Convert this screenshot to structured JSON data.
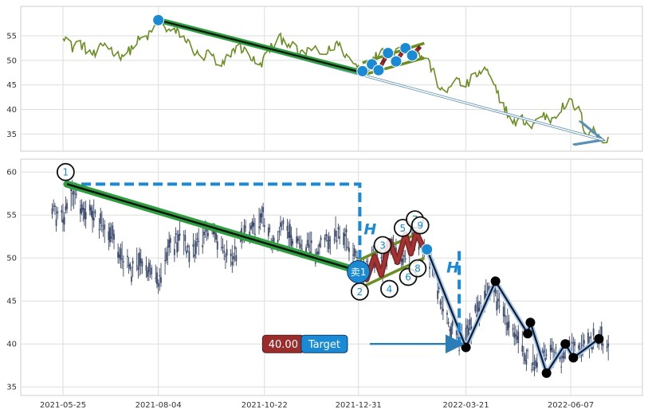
{
  "chart_data": [
    {
      "type": "line",
      "panel": "top",
      "ylim": [
        31.5,
        61
      ],
      "yticks": [
        "55",
        "50",
        "45",
        "40",
        "35"
      ],
      "ytick_values": [
        55,
        50,
        45,
        40,
        35
      ],
      "grid": true,
      "series_color": "#6b8e23",
      "x_start": "2021-05-25",
      "anchor_points": [
        [
          "2021-05-25",
          55.5
        ],
        [
          "2021-06-01",
          52.5
        ],
        [
          "2021-06-05",
          54.0
        ],
        [
          "2021-06-12",
          52.0
        ],
        [
          "2021-06-18",
          51.0
        ],
        [
          "2021-06-25",
          53.5
        ],
        [
          "2021-07-05",
          51.0
        ],
        [
          "2021-07-12",
          51.5
        ],
        [
          "2021-07-20",
          54.0
        ],
        [
          "2021-07-28",
          55.0
        ],
        [
          "2021-08-04",
          58.0
        ],
        [
          "2021-08-12",
          56.0
        ],
        [
          "2021-08-20",
          55.5
        ],
        [
          "2021-08-28",
          53.0
        ],
        [
          "2021-09-05",
          50.0
        ],
        [
          "2021-09-12",
          52.0
        ],
        [
          "2021-09-18",
          47.5
        ],
        [
          "2021-09-25",
          51.0
        ],
        [
          "2021-10-02",
          53.0
        ],
        [
          "2021-10-10",
          51.5
        ],
        [
          "2021-10-18",
          48.5
        ],
        [
          "2021-10-25",
          52.0
        ],
        [
          "2021-11-02",
          54.5
        ],
        [
          "2021-11-10",
          53.5
        ],
        [
          "2021-11-18",
          51.0
        ],
        [
          "2021-11-25",
          52.5
        ],
        [
          "2021-12-05",
          51.0
        ],
        [
          "2021-12-15",
          53.5
        ],
        [
          "2021-12-25",
          50.0
        ],
        [
          "2022-01-03",
          48.0
        ],
        [
          "2022-01-10",
          49.5
        ],
        [
          "2022-01-17",
          52.5
        ],
        [
          "2022-01-24",
          51.0
        ],
        [
          "2022-01-31",
          53.0
        ],
        [
          "2022-02-07",
          52.0
        ],
        [
          "2022-02-14",
          51.0
        ],
        [
          "2022-02-20",
          50.5
        ],
        [
          "2022-02-27",
          46.0
        ],
        [
          "2022-03-05",
          42.5
        ],
        [
          "2022-03-12",
          46.5
        ],
        [
          "2022-03-20",
          44.5
        ],
        [
          "2022-03-28",
          47.0
        ],
        [
          "2022-04-05",
          48.0
        ],
        [
          "2022-04-12",
          44.0
        ],
        [
          "2022-04-18",
          41.0
        ],
        [
          "2022-04-25",
          37.0
        ],
        [
          "2022-05-02",
          38.0
        ],
        [
          "2022-05-09",
          36.5
        ],
        [
          "2022-05-16",
          39.0
        ],
        [
          "2022-05-23",
          38.0
        ],
        [
          "2022-05-30",
          40.0
        ],
        [
          "2022-06-07",
          41.5
        ],
        [
          "2022-06-14",
          39.5
        ],
        [
          "2022-06-18",
          35.0
        ],
        [
          "2022-06-24",
          36.0
        ],
        [
          "2022-06-28",
          34.0
        ],
        [
          "2022-07-01",
          33.5
        ],
        [
          "2022-07-05",
          34.5
        ]
      ],
      "trend_line": {
        "from": [
          "2021-08-04",
          58.2
        ],
        "to": [
          "2022-01-03",
          47.5
        ],
        "color": "#111111",
        "band_color": "#2e9e3e"
      },
      "down_arrow": {
        "from": [
          "2021-08-04",
          58.2
        ],
        "to": [
          "2022-07-01",
          33.8
        ],
        "color": "#5b8fb5"
      },
      "channel": {
        "upper": {
          "from": [
            "2022-01-03",
            49.5
          ],
          "to": [
            "2022-02-18",
            53.5
          ]
        },
        "lower": {
          "from": [
            "2022-01-03",
            47.0
          ],
          "to": [
            "2022-02-18",
            50.5
          ]
        },
        "color": "#6b8e23"
      },
      "zigzag": [
        [
          "2022-01-03",
          47.8
        ],
        [
          "2022-01-10",
          49.2
        ],
        [
          "2022-01-15",
          48.0
        ],
        [
          "2022-01-22",
          51.5
        ],
        [
          "2022-01-28",
          49.8
        ],
        [
          "2022-02-04",
          52.5
        ],
        [
          "2022-02-09",
          51.0
        ],
        [
          "2022-02-15",
          52.8
        ]
      ],
      "zigzag_color": "#a83232",
      "markers": [
        [
          "2021-08-04",
          58.2
        ],
        [
          "2022-01-03",
          47.8
        ],
        [
          "2022-01-10",
          49.2
        ],
        [
          "2022-01-15",
          48.0
        ],
        [
          "2022-01-22",
          51.5
        ],
        [
          "2022-01-28",
          49.8
        ],
        [
          "2022-02-04",
          52.5
        ],
        [
          "2022-02-09",
          51.0
        ]
      ],
      "marker_color": "#1a8ad4"
    },
    {
      "type": "candlestick",
      "panel": "bottom",
      "ylim": [
        34,
        61.5
      ],
      "yticks": [
        "60",
        "55",
        "50",
        "45",
        "40",
        "35"
      ],
      "ytick_values": [
        60,
        55,
        50,
        45,
        40,
        35
      ],
      "xticks": [
        "2021-05-25",
        "2021-08-04",
        "2021-10-22",
        "2021-12-31",
        "2022-03-21",
        "2022-06-07"
      ],
      "grid": true,
      "candle_color": "#3b4a6b",
      "anchor_points": [
        [
          "2021-05-15",
          56.0
        ],
        [
          "2021-05-25",
          54.5
        ],
        [
          "2021-06-01",
          57.5
        ],
        [
          "2021-06-08",
          56.0
        ],
        [
          "2021-06-15",
          55.5
        ],
        [
          "2021-06-22",
          54.0
        ],
        [
          "2021-06-30",
          53.0
        ],
        [
          "2021-07-08",
          50.0
        ],
        [
          "2021-07-15",
          48.5
        ],
        [
          "2021-07-22",
          50.0
        ],
        [
          "2021-07-30",
          48.0
        ],
        [
          "2021-08-05",
          47.0
        ],
        [
          "2021-08-12",
          51.0
        ],
        [
          "2021-08-20",
          52.5
        ],
        [
          "2021-08-28",
          50.5
        ],
        [
          "2021-09-05",
          52.0
        ],
        [
          "2021-09-12",
          53.5
        ],
        [
          "2021-09-20",
          51.0
        ],
        [
          "2021-09-28",
          49.5
        ],
        [
          "2021-10-05",
          52.5
        ],
        [
          "2021-10-12",
          53.5
        ],
        [
          "2021-10-20",
          55.0
        ],
        [
          "2021-10-28",
          52.0
        ],
        [
          "2021-11-05",
          53.5
        ],
        [
          "2021-11-12",
          51.5
        ],
        [
          "2021-11-20",
          52.0
        ],
        [
          "2021-11-28",
          50.5
        ],
        [
          "2021-12-08",
          52.0
        ],
        [
          "2021-12-18",
          53.0
        ],
        [
          "2021-12-26",
          51.0
        ],
        [
          "2022-01-03",
          48.5
        ],
        [
          "2022-01-10",
          50.5
        ],
        [
          "2022-01-18",
          49.5
        ],
        [
          "2022-01-25",
          51.5
        ],
        [
          "2022-02-02",
          50.0
        ],
        [
          "2022-02-10",
          52.0
        ],
        [
          "2022-02-18",
          51.5
        ],
        [
          "2022-02-25",
          49.0
        ],
        [
          "2022-03-02",
          45.0
        ],
        [
          "2022-03-10",
          41.5
        ],
        [
          "2022-03-16",
          40.5
        ],
        [
          "2022-03-21",
          41.0
        ],
        [
          "2022-03-30",
          44.0
        ],
        [
          "2022-04-08",
          46.5
        ],
        [
          "2022-04-15",
          45.0
        ],
        [
          "2022-04-22",
          42.0
        ],
        [
          "2022-04-30",
          40.0
        ],
        [
          "2022-05-08",
          37.5
        ],
        [
          "2022-05-15",
          38.5
        ],
        [
          "2022-05-22",
          39.5
        ],
        [
          "2022-05-30",
          38.0
        ],
        [
          "2022-06-07",
          39.0
        ],
        [
          "2022-06-14",
          39.5
        ],
        [
          "2022-06-21",
          40.0
        ],
        [
          "2022-06-28",
          40.5
        ],
        [
          "2022-07-05",
          40.0
        ]
      ],
      "trend_band": {
        "from": [
          "2021-05-28",
          58.6
        ],
        "to": [
          "2022-01-02",
          48.4
        ],
        "color": "#2e9e3e",
        "line_color": "#111111"
      },
      "h_measure": {
        "top": [
          "2021-05-28",
          58.6
        ],
        "corner_x": "2022-01-01",
        "bottom_y": 48.0,
        "label": "H",
        "color": "#1a8ad4"
      },
      "h_measure_2": {
        "x": "2022-03-16",
        "from_y": 50.8,
        "to_y": 40.2,
        "label": "H"
      },
      "channel": {
        "upper": {
          "from": [
            "2022-01-01",
            49.8
          ],
          "to": [
            "2022-02-18",
            53.2
          ]
        },
        "lower": {
          "from": [
            "2022-01-01",
            46.5
          ],
          "to": [
            "2022-02-18",
            50.0
          ]
        },
        "color": "#6b8e23"
      },
      "zigzag": [
        [
          "2022-01-02",
          48.4
        ],
        [
          "2022-01-06",
          47.5
        ],
        [
          "2022-01-12",
          50.2
        ],
        [
          "2022-01-17",
          48.0
        ],
        [
          "2022-01-23",
          52.0
        ],
        [
          "2022-01-29",
          49.5
        ],
        [
          "2022-02-04",
          52.8
        ],
        [
          "2022-02-08",
          50.5
        ],
        [
          "2022-02-12",
          53.0
        ],
        [
          "2022-02-17",
          51.3
        ]
      ],
      "zigzag_color": "#a83232",
      "zigzag_band_color": "#7a2a2a",
      "labels_numbered": [
        {
          "text": "1",
          "at": [
            "2021-05-27",
            60.0
          ]
        },
        {
          "text": "2",
          "at": [
            "2022-01-01",
            46.1
          ]
        },
        {
          "text": "3",
          "at": [
            "2022-01-18",
            51.5
          ]
        },
        {
          "text": "4",
          "at": [
            "2022-01-23",
            46.4
          ]
        },
        {
          "text": "5",
          "at": [
            "2022-02-02",
            53.5
          ]
        },
        {
          "text": "6",
          "at": [
            "2022-02-06",
            47.8
          ]
        },
        {
          "text": "7",
          "at": [
            "2022-02-11",
            54.5
          ]
        },
        {
          "text": "8",
          "at": [
            "2022-02-13",
            48.8
          ]
        },
        {
          "text": "9",
          "at": [
            "2022-02-15",
            53.8
          ]
        }
      ],
      "sell_marker": {
        "text": "卖1",
        "at": [
          "2021-12-31",
          48.4
        ],
        "color": "#1a8ad4"
      },
      "small_marker": {
        "at": [
          "2022-02-20",
          51.0
        ],
        "color": "#1a8ad4"
      },
      "projection_path": [
        [
          "2022-02-20",
          51.0
        ],
        [
          "2022-03-21",
          39.6
        ],
        [
          "2022-04-12",
          47.3
        ],
        [
          "2022-05-06",
          41.2
        ],
        [
          "2022-05-08",
          42.5
        ],
        [
          "2022-05-20",
          36.6
        ],
        [
          "2022-06-03",
          40.0
        ],
        [
          "2022-06-09",
          38.4
        ],
        [
          "2022-06-28",
          40.6
        ]
      ],
      "projection_points": [
        [
          "2022-03-21",
          39.6
        ],
        [
          "2022-04-12",
          47.3
        ],
        [
          "2022-05-06",
          41.2
        ],
        [
          "2022-05-08",
          42.5
        ],
        [
          "2022-05-20",
          36.6
        ],
        [
          "2022-06-03",
          40.0
        ],
        [
          "2022-06-09",
          38.4
        ],
        [
          "2022-06-28",
          40.6
        ]
      ],
      "projection_color": "#0d1a33",
      "projection_glow": "#a8c6e8",
      "target": {
        "value_label": "40.00",
        "value_color": "#9b2c2c",
        "label": "Target",
        "label_color": "#1a8ad4",
        "arrow_y": 40.0,
        "arrow_to": "2022-03-16",
        "value_box_x": "2021-11-05",
        "label_box_x": "2021-12-05"
      }
    }
  ]
}
